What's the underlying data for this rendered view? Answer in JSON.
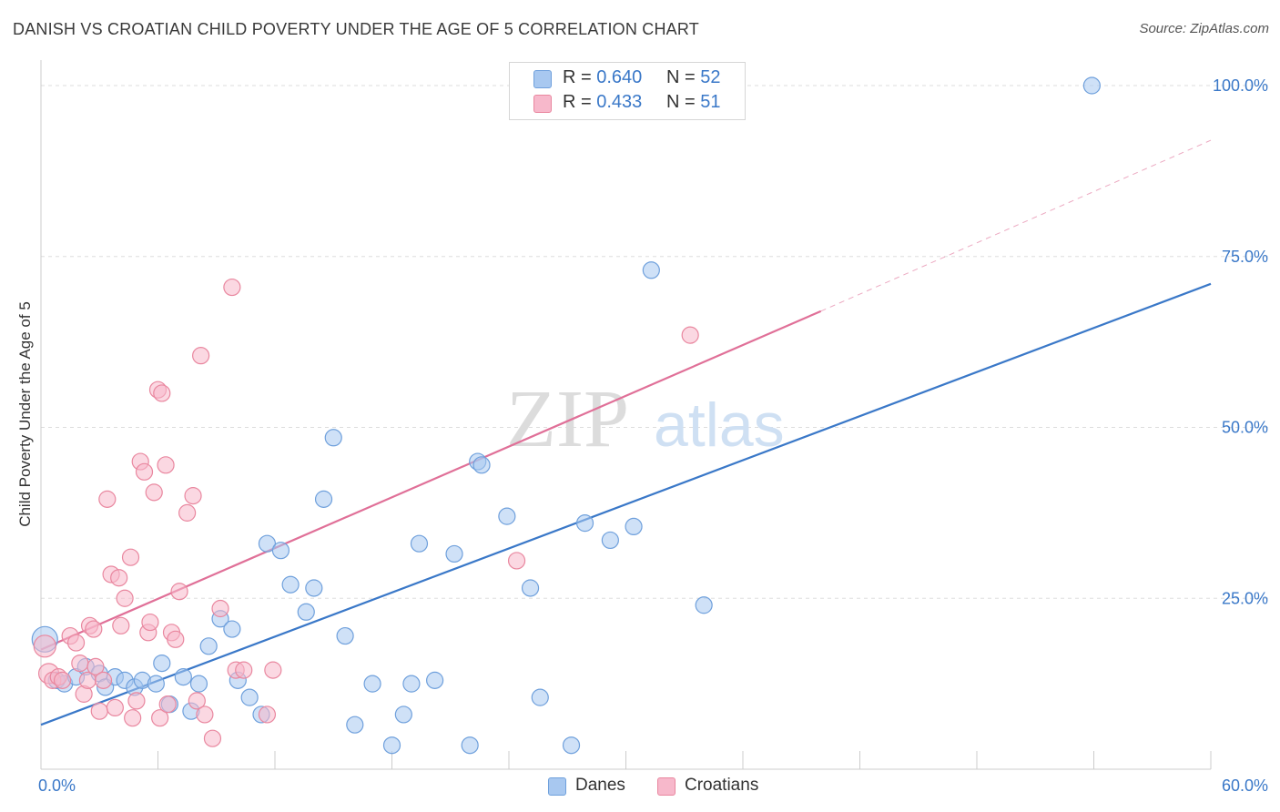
{
  "title": "DANISH VS CROATIAN CHILD POVERTY UNDER THE AGE OF 5 CORRELATION CHART",
  "source": "Source: ZipAtlas.com",
  "watermark": {
    "zip": "ZIP",
    "atlas": "atlas"
  },
  "legend": {
    "items": [
      {
        "r_label": "R =",
        "r_value": "0.640",
        "n_label": "N =",
        "n_value": "52",
        "color": "#a8c8f0",
        "border": "#6fa0dc"
      },
      {
        "r_label": "R =",
        "r_value": "0.433",
        "n_label": "N =",
        "n_value": "51",
        "color": "#f7b8cb",
        "border": "#e9879f"
      }
    ]
  },
  "bottom_legend": [
    {
      "label": "Danes",
      "color": "#a8c8f0",
      "border": "#6fa0dc"
    },
    {
      "label": "Croatians",
      "color": "#f7b8cb",
      "border": "#e9879f"
    }
  ],
  "chart_data": {
    "type": "scatter",
    "title": "DANISH VS CROATIAN CHILD POVERTY UNDER THE AGE OF 5 CORRELATION CHART",
    "xlabel": "",
    "ylabel": "Child Poverty Under the Age of 5",
    "xlim": [
      0,
      60
    ],
    "ylim": [
      0,
      102
    ],
    "x_tick_labels": [
      {
        "value": 0,
        "label": "0.0%"
      },
      {
        "value": 60,
        "label": "60.0%"
      }
    ],
    "y_tick_labels": [
      {
        "value": 25,
        "label": "25.0%"
      },
      {
        "value": 50,
        "label": "50.0%"
      },
      {
        "value": 75,
        "label": "75.0%"
      },
      {
        "value": 100,
        "label": "100.0%"
      }
    ],
    "grid": true,
    "legend_position": "top-center",
    "colors": {
      "Danes": "#3a78c8",
      "Croatians": "#e07098"
    },
    "series": [
      {
        "name": "Danes",
        "x": [
          0.2,
          0.8,
          1.2,
          1.8,
          2.3,
          3.0,
          3.3,
          3.8,
          4.3,
          4.8,
          5.2,
          5.9,
          6.2,
          6.6,
          7.3,
          7.7,
          8.1,
          8.6,
          9.2,
          9.8,
          10.1,
          10.7,
          11.3,
          11.6,
          12.3,
          12.8,
          13.6,
          14.0,
          14.5,
          15.0,
          15.6,
          16.1,
          17.0,
          18.0,
          18.6,
          19.0,
          19.4,
          20.2,
          21.2,
          22.0,
          22.4,
          22.6,
          23.9,
          25.1,
          25.6,
          27.2,
          27.9,
          29.2,
          30.4,
          31.3,
          34.0,
          53.9
        ],
        "y": [
          19.0,
          13.0,
          12.5,
          13.5,
          15.0,
          14.0,
          12.0,
          13.5,
          13.0,
          12.0,
          13.0,
          12.5,
          15.5,
          9.5,
          13.5,
          8.5,
          12.5,
          18.0,
          22.0,
          20.5,
          13.0,
          10.5,
          8.0,
          33.0,
          32.0,
          27.0,
          23.0,
          26.5,
          39.5,
          48.5,
          19.5,
          6.5,
          12.5,
          3.5,
          8.0,
          12.5,
          33.0,
          13.0,
          31.5,
          3.5,
          45.0,
          44.5,
          37.0,
          26.5,
          10.5,
          3.5,
          36.0,
          33.5,
          35.5,
          73.0,
          24.0,
          100.0
        ],
        "sizes": [
          14,
          9,
          9,
          9,
          9,
          9,
          9,
          9,
          9,
          9,
          9,
          9,
          9,
          9,
          9,
          9,
          9,
          9,
          9,
          9,
          9,
          9,
          9,
          9,
          9,
          9,
          9,
          9,
          9,
          9,
          9,
          9,
          9,
          9,
          9,
          9,
          9,
          9,
          9,
          9,
          9,
          9,
          9,
          9,
          9,
          9,
          9,
          9,
          9,
          9,
          9,
          9
        ]
      },
      {
        "name": "Croatians",
        "x": [
          0.2,
          0.4,
          0.6,
          0.9,
          1.1,
          1.5,
          1.8,
          2.0,
          2.2,
          2.4,
          2.5,
          2.7,
          2.8,
          3.0,
          3.2,
          3.4,
          3.6,
          3.8,
          4.0,
          4.1,
          4.3,
          4.6,
          4.7,
          4.9,
          5.1,
          5.3,
          5.5,
          5.6,
          5.8,
          6.0,
          6.1,
          6.2,
          6.4,
          6.5,
          6.7,
          6.9,
          7.1,
          7.5,
          7.8,
          8.0,
          8.2,
          8.4,
          8.8,
          9.2,
          9.8,
          10.0,
          10.4,
          11.6,
          11.9,
          24.4,
          33.3
        ],
        "y": [
          18.0,
          14.0,
          13.0,
          13.5,
          13.0,
          19.5,
          18.5,
          15.5,
          11.0,
          13.0,
          21.0,
          20.5,
          15.0,
          8.5,
          13.0,
          39.5,
          28.5,
          9.0,
          28.0,
          21.0,
          25.0,
          31.0,
          7.5,
          10.0,
          45.0,
          43.5,
          20.0,
          21.5,
          40.5,
          55.5,
          7.5,
          55.0,
          44.5,
          9.5,
          20.0,
          19.0,
          26.0,
          37.5,
          40.0,
          10.0,
          60.5,
          8.0,
          4.5,
          23.5,
          70.5,
          14.5,
          14.5,
          8.0,
          14.5,
          30.5,
          63.5
        ],
        "sizes": [
          12,
          11,
          9,
          9,
          9,
          9,
          9,
          9,
          9,
          9,
          9,
          9,
          9,
          9,
          9,
          9,
          9,
          9,
          9,
          9,
          9,
          9,
          9,
          9,
          9,
          9,
          9,
          9,
          9,
          9,
          9,
          9,
          9,
          9,
          9,
          9,
          9,
          9,
          9,
          9,
          9,
          9,
          9,
          9,
          9,
          9,
          9,
          9,
          9,
          9,
          9
        ]
      }
    ],
    "trendlines": [
      {
        "series": "Danes",
        "x": [
          0,
          60
        ],
        "y": [
          6.5,
          71.0
        ],
        "style": "solid"
      },
      {
        "series": "Croatians",
        "x": [
          0,
          40
        ],
        "y": [
          17.5,
          67.0
        ],
        "style": "solid"
      },
      {
        "series": "Croatians",
        "x": [
          40,
          60
        ],
        "y": [
          67.0,
          92.0
        ],
        "style": "dashed"
      }
    ]
  }
}
